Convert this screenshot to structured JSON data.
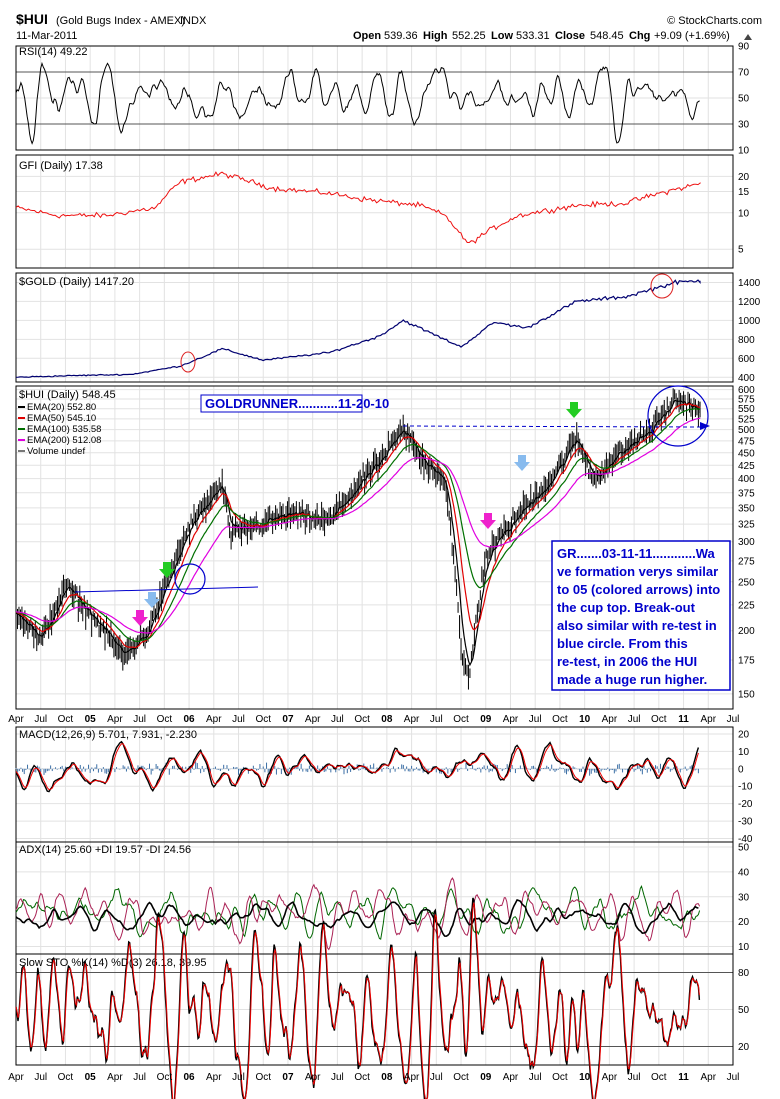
{
  "header": {
    "symbol": "$HUI",
    "name": "(Gold Bugs Index - AMEX)",
    "exchange": "INDX",
    "brand": "© StockCharts.com",
    "date": "11-Mar-2011",
    "open_label": "Open",
    "open": "539.36",
    "high_label": "High",
    "high": "552.25",
    "low_label": "Low",
    "low": "533.31",
    "close_label": "Close",
    "close": "548.45",
    "chg_label": "Chg",
    "chg": "+9.09 (+1.69%)"
  },
  "colors": {
    "price": "#000000",
    "ema20": "#000000",
    "ema50": "#e00000",
    "ema100": "#007000",
    "ema200": "#e000e0",
    "gfi": "#ee1111",
    "gold": "#000070",
    "annotation": "#0000cc",
    "macd_hist": "#3a6ea5",
    "plus_di": "#006600",
    "minus_di": "#aa2255"
  },
  "annotations": {
    "goldrunner": "GOLDRUNNER...........11-20-10",
    "note_lines": [
      "GR.......03-11-11............Wa",
      "ve formation verys similar",
      "to 05 (colored arrows) into",
      "the cup top.  Break-out",
      "also similar with re-test in",
      "blue circle. From this",
      "re-test, in 2006 the HUI",
      "made a huge run higher."
    ]
  },
  "chart_data": [
    {
      "type": "line",
      "panel": "rsi",
      "legend": "RSI(14) 49.22",
      "ylim": [
        10,
        90
      ],
      "yticks": [
        "90",
        "70",
        "50",
        "30",
        "10"
      ],
      "yticks_values": [
        90,
        70,
        50,
        30,
        10
      ],
      "reference_lines": [
        70,
        30
      ],
      "last": 49.22
    },
    {
      "type": "line",
      "panel": "gfi",
      "legend": "GFI (Daily) 17.38",
      "ylim": [
        3.5,
        30
      ],
      "log_scale": true,
      "yticks": [
        "20",
        "15",
        "10",
        "5"
      ],
      "yticks_values": [
        20,
        15,
        10,
        5
      ],
      "x": [
        "2004-04",
        "2004-09",
        "2005-03",
        "2005-09",
        "2005-12",
        "2006-05",
        "2006-11",
        "2007-06",
        "2007-10",
        "2008-05",
        "2008-08",
        "2008-10",
        "2008-11",
        "2009-05",
        "2009-12",
        "2010-06",
        "2010-11",
        "2011-03"
      ],
      "values": [
        11,
        9.5,
        9.5,
        11,
        18,
        21,
        16,
        14.5,
        13,
        11.5,
        9.5,
        6.5,
        5.5,
        9.5,
        11.5,
        12,
        15,
        17.38
      ]
    },
    {
      "type": "line",
      "panel": "gold",
      "legend": "$GOLD (Daily) 1417.20",
      "ylim": [
        350,
        1500
      ],
      "yticks": [
        "1400",
        "1200",
        "1000",
        "800",
        "600",
        "400"
      ],
      "yticks_values": [
        1400,
        1200,
        1000,
        800,
        600,
        400
      ],
      "x": [
        "2004-04",
        "2004-12",
        "2005-06",
        "2005-12",
        "2006-05",
        "2006-10",
        "2007-06",
        "2007-12",
        "2008-03",
        "2008-10",
        "2009-02",
        "2009-06",
        "2009-12",
        "2010-06",
        "2010-10",
        "2010-12",
        "2011-03"
      ],
      "values": [
        400,
        420,
        430,
        520,
        700,
        580,
        660,
        830,
        1000,
        720,
        980,
        920,
        1200,
        1250,
        1350,
        1400,
        1417.2
      ]
    },
    {
      "type": "line",
      "panel": "price",
      "legend": "$HUI (Daily) 548.45",
      "legend_items": [
        "EMA(20) 552.80",
        "EMA(50) 545.10",
        "EMA(100) 535.58",
        "EMA(200) 512.08",
        "Volume undef"
      ],
      "ylim": [
        140,
        610
      ],
      "log_scale": true,
      "yticks": [
        "600",
        "575",
        "550",
        "525",
        "500",
        "475",
        "450",
        "425",
        "400",
        "375",
        "350",
        "325",
        "300",
        "275",
        "250",
        "225",
        "200",
        "175",
        "150"
      ],
      "yticks_values": [
        600,
        575,
        550,
        525,
        500,
        475,
        450,
        425,
        400,
        375,
        350,
        325,
        300,
        275,
        250,
        225,
        200,
        175,
        150
      ],
      "x": [
        "2004-04",
        "2004-07",
        "2004-10",
        "2004-12",
        "2005-05",
        "2005-08",
        "2005-10",
        "2006-01",
        "2006-05",
        "2006-06",
        "2007-01",
        "2007-06",
        "2007-12",
        "2008-03",
        "2008-05",
        "2008-08",
        "2008-10",
        "2008-11",
        "2009-01",
        "2009-05",
        "2009-09",
        "2009-12",
        "2010-02",
        "2010-06",
        "2010-09",
        "2010-12",
        "2011-03"
      ],
      "values": [
        220,
        190,
        245,
        225,
        178,
        200,
        240,
        320,
        390,
        310,
        340,
        330,
        430,
        500,
        440,
        400,
        180,
        160,
        280,
        340,
        400,
        480,
        400,
        460,
        500,
        575,
        548.45
      ]
    },
    {
      "type": "line",
      "panel": "macd",
      "legend": "MACD(12,26,9) 5.701, 7.931, -2.230",
      "ylim": [
        -42,
        24
      ],
      "yticks": [
        "20",
        "10",
        "0",
        "-10",
        "-20",
        "-30",
        "-40"
      ],
      "yticks_values": [
        20,
        10,
        0,
        -10,
        -20,
        -30,
        -40
      ],
      "last": [
        5.701,
        7.931,
        -2.23
      ]
    },
    {
      "type": "line",
      "panel": "adx",
      "legend": "ADX(14) 25.60 +DI 19.57 -DI 24.56",
      "ylim": [
        7,
        52
      ],
      "yticks": [
        "50",
        "40",
        "30",
        "20",
        "10"
      ],
      "yticks_values": [
        50,
        40,
        30,
        20,
        10
      ],
      "last": [
        25.6,
        19.57,
        24.56
      ]
    },
    {
      "type": "line",
      "panel": "sto",
      "legend": "Slow STO %K(14) %D(3) 26.18, 39.95",
      "ylim": [
        5,
        95
      ],
      "yticks": [
        "80",
        "50",
        "20"
      ],
      "yticks_values": [
        80,
        50,
        20
      ],
      "reference_lines": [
        80,
        20
      ],
      "last": [
        26.18,
        39.95
      ]
    }
  ],
  "x_axis": {
    "range": [
      "2004-04",
      "2011-07"
    ],
    "tick_labels": [
      "Apr",
      "Jul",
      "Oct",
      "05",
      "Apr",
      "Jul",
      "Oct",
      "06",
      "Apr",
      "Jul",
      "Oct",
      "07",
      "Apr",
      "Jul",
      "Oct",
      "08",
      "Apr",
      "Jul",
      "Oct",
      "09",
      "Apr",
      "Jul",
      "Oct",
      "10",
      "Apr",
      "Jul",
      "Oct",
      "11",
      "Apr",
      "Jul"
    ]
  }
}
